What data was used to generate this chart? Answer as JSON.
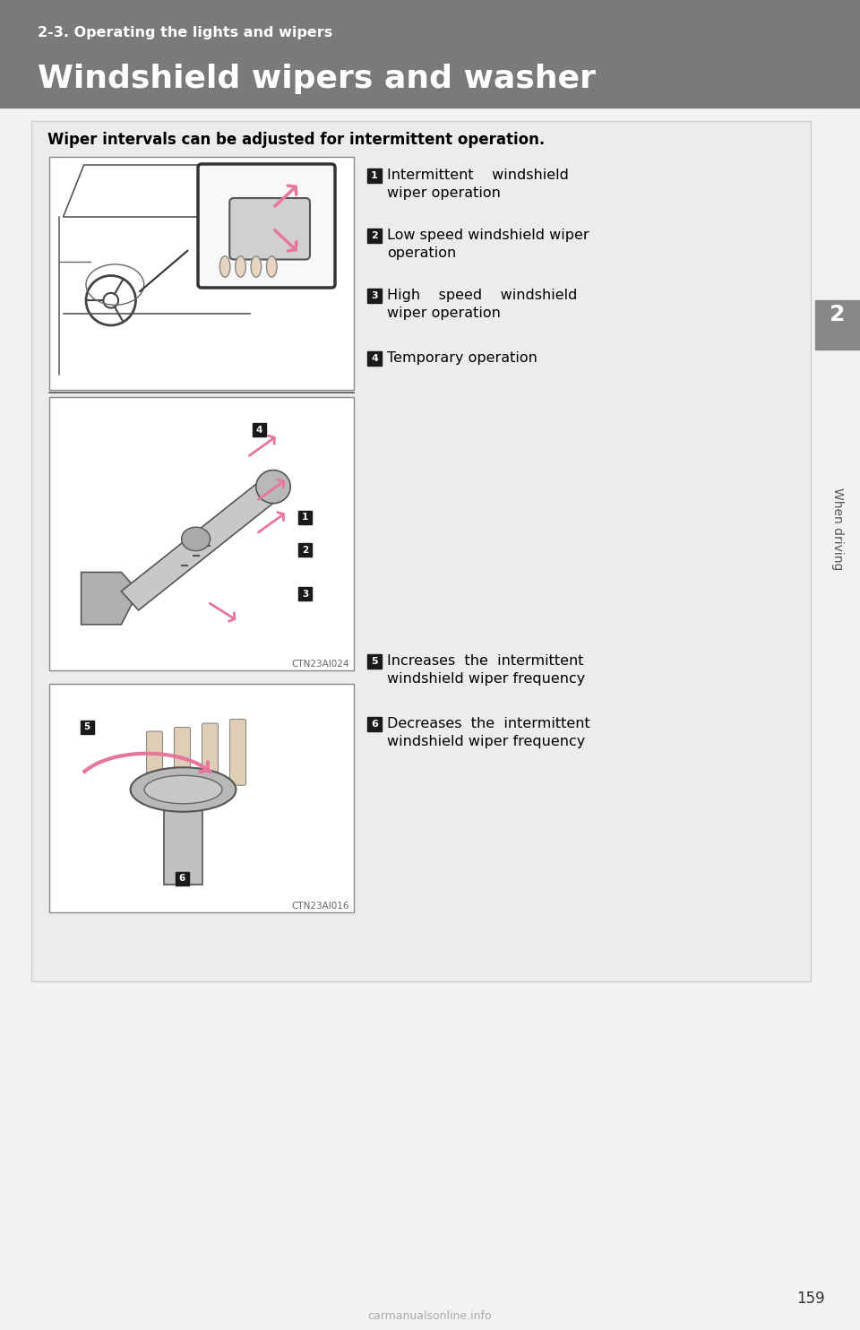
{
  "page_bg": "#f2f2f2",
  "header_bg": "#7a7a7a",
  "header_subtitle": "2-3. Operating the lights and wipers",
  "header_title": "Windshield wipers and washer",
  "sidebar_bg": "#888888",
  "sidebar_number": "2",
  "sidebar_text": "When driving",
  "page_number": "159",
  "box_bg": "#ececec",
  "box_intro": "Wiper intervals can be adjusted for intermittent operation.",
  "items_col1": [
    {
      "num": "1",
      "text": "Intermittent    windshield\nwiper operation"
    },
    {
      "num": "2",
      "text": "Low speed windshield wiper\noperation"
    },
    {
      "num": "3",
      "text": "High    speed    windshield\nwiper operation"
    },
    {
      "num": "4",
      "text": "Temporary operation"
    }
  ],
  "items_col2": [
    {
      "num": "5",
      "text": "Increases  the  intermittent\nwindshield wiper frequency"
    },
    {
      "num": "6",
      "text": "Decreases  the  intermittent\nwindshield wiper frequency"
    }
  ],
  "img1_caption": "CTN23AI024",
  "img2_caption": "CTN23AI016",
  "watermark": "carmanualsonline.info",
  "pink": "#e8759a",
  "dark": "#222222",
  "mid_gray": "#888888",
  "light_gray": "#cccccc"
}
